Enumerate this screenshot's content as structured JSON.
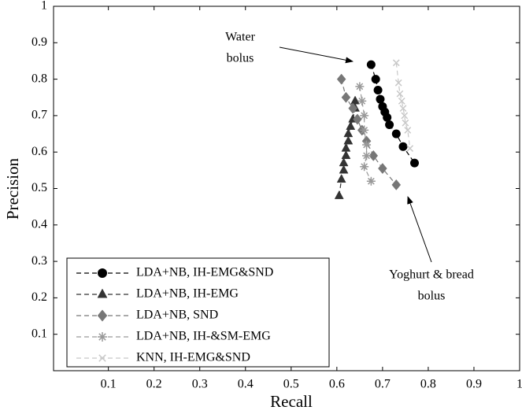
{
  "chart_data": {
    "type": "line",
    "x_label": "Recall",
    "y_label": "Precision",
    "xlim": [
      -0.02,
      1
    ],
    "ylim": [
      0,
      1
    ],
    "xticks": [
      0.1,
      0.2,
      0.3,
      0.4,
      0.5,
      0.6,
      0.7,
      0.8,
      0.9,
      1
    ],
    "yticks": [
      0.1,
      0.2,
      0.3,
      0.4,
      0.5,
      0.6,
      0.7,
      0.8,
      0.9,
      1
    ],
    "legend": "lower left",
    "series": [
      {
        "name": "LDA+NB, IH-EMG&SND",
        "color": "#000000",
        "marker": "circle",
        "x": [
          0.675,
          0.685,
          0.69,
          0.695,
          0.7,
          0.705,
          0.71,
          0.715,
          0.73,
          0.745,
          0.77
        ],
        "values": [
          0.84,
          0.8,
          0.77,
          0.745,
          0.725,
          0.71,
          0.695,
          0.675,
          0.65,
          0.615,
          0.57
        ]
      },
      {
        "name": "LDA+NB, IH-EMG",
        "color": "#333333",
        "marker": "triangle",
        "x": [
          0.605,
          0.61,
          0.615,
          0.615,
          0.62,
          0.62,
          0.625,
          0.625,
          0.63,
          0.635,
          0.64,
          0.64
        ],
        "values": [
          0.48,
          0.525,
          0.55,
          0.57,
          0.59,
          0.61,
          0.63,
          0.65,
          0.67,
          0.69,
          0.72,
          0.74
        ]
      },
      {
        "name": "LDA+NB, SND",
        "color": "#777777",
        "marker": "diamond",
        "x": [
          0.61,
          0.62,
          0.635,
          0.645,
          0.655,
          0.665,
          0.68,
          0.7,
          0.73
        ],
        "values": [
          0.8,
          0.75,
          0.72,
          0.69,
          0.66,
          0.63,
          0.59,
          0.555,
          0.51
        ]
      },
      {
        "name": "LDA+NB, IH-&SM-EMG",
        "color": "#999999",
        "marker": "asterisk",
        "x": [
          0.65,
          0.655,
          0.66,
          0.66,
          0.665,
          0.665,
          0.66,
          0.675
        ],
        "values": [
          0.78,
          0.74,
          0.7,
          0.66,
          0.62,
          0.59,
          0.56,
          0.52
        ]
      },
      {
        "name": "KNN, IH-EMG&SND",
        "color": "#c8c8c8",
        "marker": "x",
        "x": [
          0.73,
          0.735,
          0.738,
          0.742,
          0.745,
          0.748,
          0.75,
          0.755,
          0.76
        ],
        "values": [
          0.845,
          0.79,
          0.76,
          0.74,
          0.72,
          0.7,
          0.68,
          0.66,
          0.61
        ]
      }
    ],
    "annotations": [
      {
        "lines": [
          "Water",
          "bolus"
        ]
      },
      {
        "lines": [
          "Yoghurt & bread",
          "bolus"
        ]
      }
    ]
  }
}
